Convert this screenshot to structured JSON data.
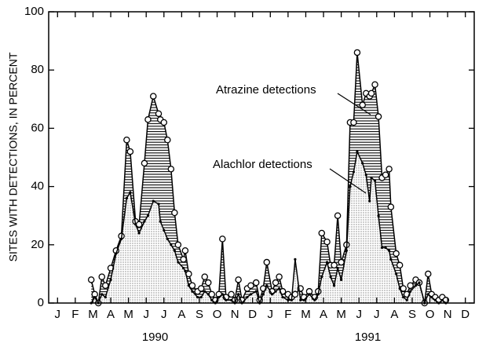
{
  "chart_data": {
    "type": "area",
    "y_label": "SITES WITH DETECTIONS, IN PERCENT",
    "annotations": [
      "Atrazine detections",
      "Alachlor detections"
    ],
    "year_labels": [
      "1990",
      "1991"
    ],
    "xlim": [
      0,
      24
    ],
    "xticks": [
      {
        "value": 0.5,
        "label": "J"
      },
      {
        "value": 1.5,
        "label": "F"
      },
      {
        "value": 2.5,
        "label": "M"
      },
      {
        "value": 3.5,
        "label": "A"
      },
      {
        "value": 4.5,
        "label": "M"
      },
      {
        "value": 5.5,
        "label": "J"
      },
      {
        "value": 6.5,
        "label": "J"
      },
      {
        "value": 7.5,
        "label": "A"
      },
      {
        "value": 8.5,
        "label": "S"
      },
      {
        "value": 9.5,
        "label": "O"
      },
      {
        "value": 10.5,
        "label": "N"
      },
      {
        "value": 11.5,
        "label": "D"
      },
      {
        "value": 12.5,
        "label": "J"
      },
      {
        "value": 13.5,
        "label": "F"
      },
      {
        "value": 14.5,
        "label": "M"
      },
      {
        "value": 15.5,
        "label": "A"
      },
      {
        "value": 16.5,
        "label": "M"
      },
      {
        "value": 17.5,
        "label": "J"
      },
      {
        "value": 18.5,
        "label": "J"
      },
      {
        "value": 19.5,
        "label": "A"
      },
      {
        "value": 20.5,
        "label": "S"
      },
      {
        "value": 21.5,
        "label": "O"
      },
      {
        "value": 22.5,
        "label": "N"
      },
      {
        "value": 23.5,
        "label": "D"
      }
    ],
    "ylim": [
      0,
      100
    ],
    "yticks": [
      0,
      20,
      40,
      60,
      80,
      100
    ],
    "x": [
      2.4,
      2.6,
      2.8,
      3.0,
      3.2,
      3.5,
      3.8,
      4.1,
      4.4,
      4.6,
      4.9,
      5.1,
      5.4,
      5.6,
      5.9,
      6.2,
      6.3,
      6.5,
      6.7,
      6.9,
      7.1,
      7.3,
      7.6,
      7.7,
      7.9,
      8.1,
      8.4,
      8.6,
      8.8,
      9.0,
      9.2,
      9.4,
      9.6,
      9.8,
      10.0,
      10.3,
      10.5,
      10.7,
      10.9,
      11.2,
      11.4,
      11.7,
      11.9,
      12.1,
      12.3,
      12.6,
      12.8,
      13.0,
      13.2,
      13.5,
      13.7,
      13.9,
      14.2,
      14.4,
      14.7,
      15.0,
      15.2,
      15.4,
      15.7,
      15.9,
      16.1,
      16.3,
      16.5,
      16.8,
      17.0,
      17.2,
      17.4,
      17.7,
      17.9,
      18.1,
      18.2,
      18.4,
      18.6,
      18.8,
      19.0,
      19.2,
      19.3,
      19.6,
      19.8,
      20.0,
      20.2,
      20.4,
      20.7,
      20.9,
      21.2,
      21.4,
      21.6,
      21.8,
      22.0,
      22.2,
      22.4
    ],
    "series": [
      {
        "name": "Atrazine detections",
        "color": "#000000",
        "values": [
          8,
          3,
          0,
          9,
          6,
          12,
          18,
          23,
          56,
          52,
          28,
          27,
          48,
          63,
          71,
          65,
          63,
          62,
          56,
          46,
          31,
          20,
          15,
          18,
          10,
          6,
          4,
          5,
          9,
          7,
          3,
          1,
          3,
          22,
          2,
          3,
          1,
          8,
          1,
          5,
          6,
          7,
          1,
          5,
          14,
          4,
          7,
          9,
          4,
          3,
          2,
          3,
          5,
          2,
          4,
          2,
          4,
          24,
          21,
          13,
          13,
          30,
          14,
          20,
          62,
          62,
          86,
          68,
          72,
          71,
          72,
          75,
          64,
          43,
          44,
          46,
          33,
          17,
          13,
          5,
          3,
          6,
          8,
          7,
          0,
          10,
          3,
          2,
          1,
          2,
          1
        ]
      },
      {
        "name": "Alachlor detections",
        "color": "#000000",
        "values": [
          0,
          2,
          0,
          3,
          2,
          8,
          17,
          22,
          36,
          38,
          27,
          24,
          28,
          30,
          35,
          34,
          28,
          25,
          22,
          20,
          18,
          14,
          12,
          11,
          6,
          4,
          2,
          2,
          4,
          3,
          1,
          0,
          2,
          3,
          1,
          1,
          0,
          3,
          0,
          2,
          3,
          4,
          0,
          3,
          6,
          3,
          4,
          5,
          2,
          1,
          1,
          15,
          1,
          1,
          3,
          1,
          3,
          9,
          14,
          9,
          6,
          12,
          8,
          18,
          40,
          45,
          52,
          48,
          44,
          35,
          43,
          42,
          30,
          19,
          19,
          18,
          15,
          10,
          5,
          2,
          1,
          4,
          6,
          7,
          0,
          3,
          2,
          1,
          0,
          1,
          0
        ]
      }
    ]
  }
}
